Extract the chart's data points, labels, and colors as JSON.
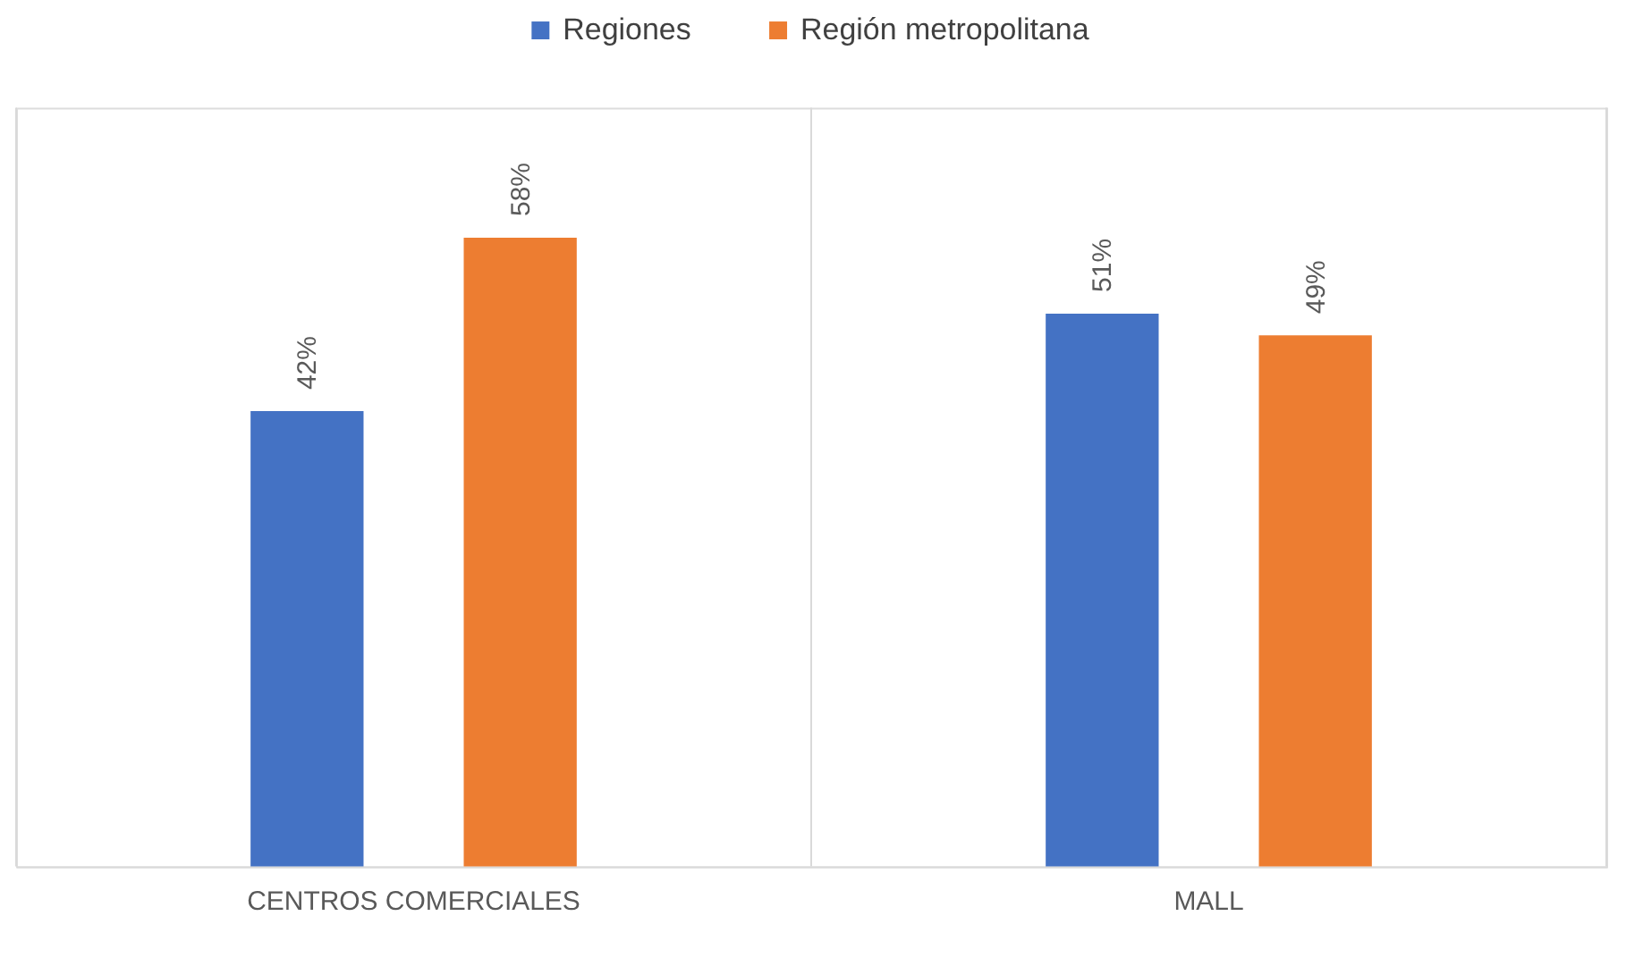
{
  "chart_data": {
    "type": "bar",
    "categories": [
      "CENTROS COMERCIALES",
      "MALL"
    ],
    "series": [
      {
        "name": "Regiones",
        "color": "#4472c4",
        "values": [
          42,
          51
        ],
        "value_labels": [
          "42%",
          "51%"
        ]
      },
      {
        "name": "Región metropolitana",
        "color": "#ed7d31",
        "values": [
          58,
          49
        ],
        "value_labels": [
          "58%",
          "49%"
        ]
      }
    ],
    "ylim": [
      0,
      70
    ],
    "grid": "x",
    "legend": "top",
    "tick_labels": "x"
  }
}
